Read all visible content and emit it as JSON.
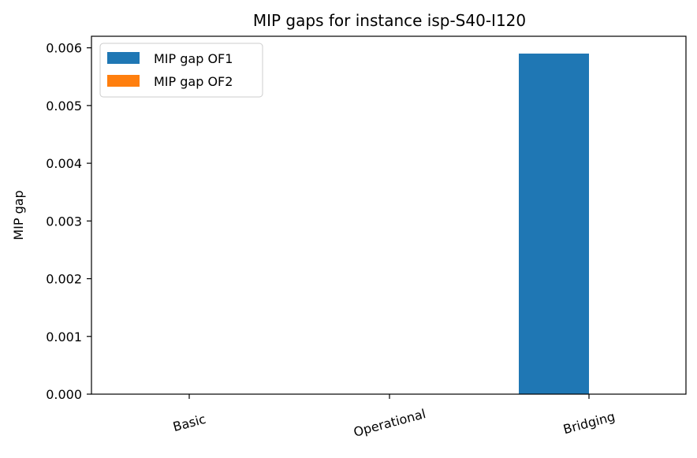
{
  "chart_data": {
    "type": "bar",
    "title": "MIP gaps for instance isp-S40-I120",
    "xlabel": "",
    "ylabel": "MIP gap",
    "categories": [
      "Basic",
      "Operational",
      "Bridging"
    ],
    "series": [
      {
        "name": "MIP gap OF1",
        "color": "#1f77b4",
        "values": [
          0,
          0,
          0.0059
        ]
      },
      {
        "name": "MIP gap OF2",
        "color": "#ff7f0e",
        "values": [
          0,
          0,
          0
        ]
      }
    ],
    "ylim": [
      0,
      0.0062
    ],
    "yticks": [
      "0.000",
      "0.001",
      "0.002",
      "0.003",
      "0.004",
      "0.005",
      "0.006"
    ],
    "ytick_values": [
      0,
      0.001,
      0.002,
      0.003,
      0.004,
      0.005,
      0.006
    ],
    "grid": false,
    "legend_position": "top-left"
  }
}
